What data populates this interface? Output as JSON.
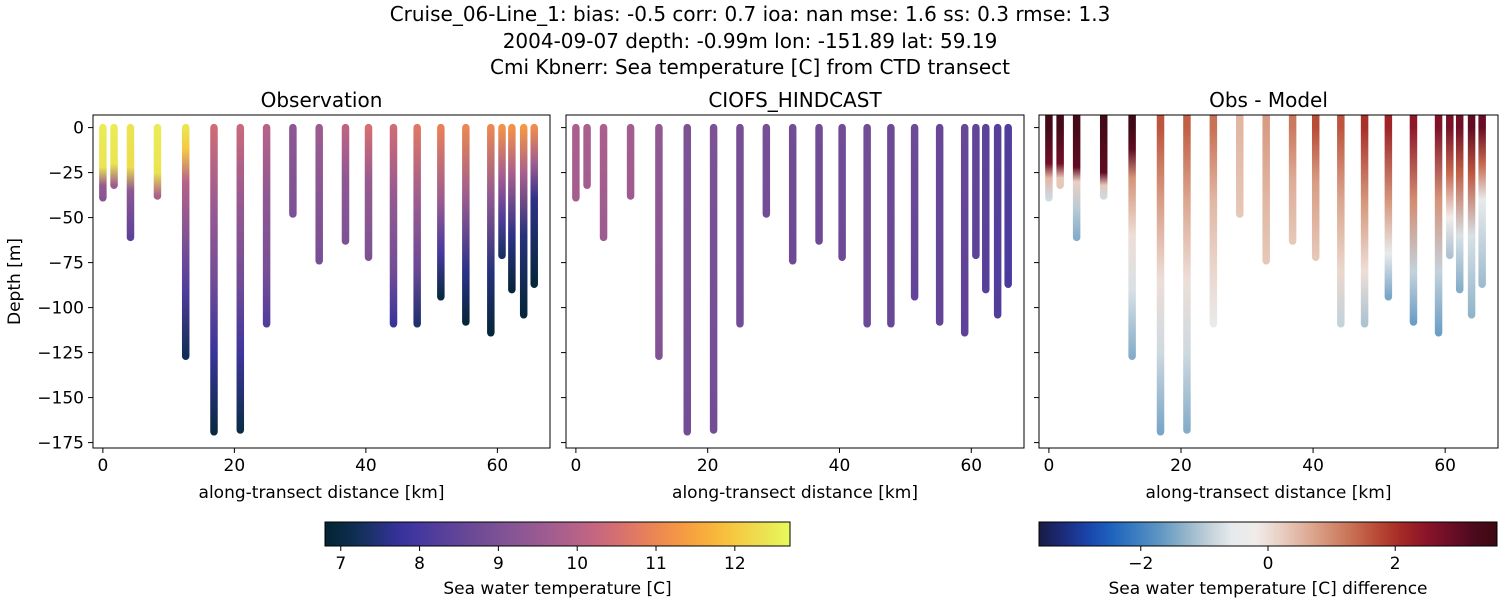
{
  "figure": {
    "title_lines": [
      "Cruise_06-Line_1: bias: -0.5  corr: 0.7  ioa: nan  mse: 1.6  ss: 0.3  rmse: 1.3",
      "2004-09-07 depth: -0.99m lon: -151.89 lat: 59.19",
      "Cmi Kbnerr: Sea temperature [C] from CTD transect"
    ]
  },
  "chart_data": {
    "type": "scatter",
    "shared": {
      "xlabel": "along-transect distance [km]",
      "ylabel": "Depth [m]",
      "xlim": [
        -1.5,
        68
      ],
      "ylim": [
        -178,
        7
      ],
      "xticks": [
        0,
        20,
        40,
        60
      ],
      "yticks": [
        0,
        -25,
        -50,
        -75,
        -100,
        -125,
        -150,
        -175
      ],
      "grid": false
    },
    "stations": [
      {
        "x": 0.0,
        "bottom": -39
      },
      {
        "x": 1.7,
        "bottom": -32
      },
      {
        "x": 4.2,
        "bottom": -61
      },
      {
        "x": 8.3,
        "bottom": -38
      },
      {
        "x": 12.6,
        "bottom": -127
      },
      {
        "x": 16.9,
        "bottom": -169
      },
      {
        "x": 20.9,
        "bottom": -168
      },
      {
        "x": 24.9,
        "bottom": -109
      },
      {
        "x": 28.9,
        "bottom": -48
      },
      {
        "x": 32.9,
        "bottom": -74
      },
      {
        "x": 36.9,
        "bottom": -63
      },
      {
        "x": 40.4,
        "bottom": -72
      },
      {
        "x": 44.2,
        "bottom": -109
      },
      {
        "x": 47.8,
        "bottom": -109
      },
      {
        "x": 51.4,
        "bottom": -94
      },
      {
        "x": 55.2,
        "bottom": -108
      },
      {
        "x": 59.0,
        "bottom": -114
      },
      {
        "x": 60.7,
        "bottom": -71
      },
      {
        "x": 62.2,
        "bottom": -90
      },
      {
        "x": 64.0,
        "bottom": -104
      },
      {
        "x": 65.6,
        "bottom": -87
      }
    ],
    "panels": [
      {
        "id": "obs",
        "title": "Observation",
        "colormap": "thermal",
        "clim": [
          6.8,
          12.7
        ],
        "profiles": [
          [
            [
              0,
              12.5
            ],
            [
              -22,
              12.4
            ],
            [
              -32,
              9.5
            ],
            [
              -39,
              9.2
            ]
          ],
          [
            [
              0,
              12.5
            ],
            [
              -20,
              12.4
            ],
            [
              -32,
              9.6
            ]
          ],
          [
            [
              0,
              12.4
            ],
            [
              -22,
              12.3
            ],
            [
              -35,
              9.3
            ],
            [
              -61,
              8.4
            ]
          ],
          [
            [
              0,
              12.5
            ],
            [
              -25,
              12.4
            ],
            [
              -38,
              9.8
            ]
          ],
          [
            [
              0,
              12.4
            ],
            [
              -12,
              12.0
            ],
            [
              -30,
              10.0
            ],
            [
              -60,
              9.1
            ],
            [
              -90,
              8.2
            ],
            [
              -127,
              7.2
            ]
          ],
          [
            [
              0,
              10.4
            ],
            [
              -40,
              9.6
            ],
            [
              -85,
              8.8
            ],
            [
              -125,
              7.8
            ],
            [
              -169,
              7.0
            ]
          ],
          [
            [
              0,
              10.3
            ],
            [
              -40,
              9.5
            ],
            [
              -85,
              8.8
            ],
            [
              -125,
              7.9
            ],
            [
              -168,
              7.1
            ]
          ],
          [
            [
              0,
              10.0
            ],
            [
              -40,
              9.3
            ],
            [
              -80,
              8.9
            ],
            [
              -109,
              8.2
            ]
          ],
          [
            [
              0,
              9.3
            ],
            [
              -48,
              9.0
            ]
          ],
          [
            [
              0,
              9.6
            ],
            [
              -40,
              9.2
            ],
            [
              -74,
              8.9
            ]
          ],
          [
            [
              0,
              10.1
            ],
            [
              -30,
              9.3
            ],
            [
              -63,
              9.0
            ]
          ],
          [
            [
              0,
              10.5
            ],
            [
              -30,
              9.5
            ],
            [
              -72,
              9.0
            ]
          ],
          [
            [
              0,
              10.4
            ],
            [
              -40,
              9.4
            ],
            [
              -80,
              8.8
            ],
            [
              -109,
              7.8
            ]
          ],
          [
            [
              0,
              10.7
            ],
            [
              -40,
              9.6
            ],
            [
              -80,
              8.6
            ],
            [
              -109,
              7.4
            ]
          ],
          [
            [
              0,
              10.9
            ],
            [
              -40,
              9.6
            ],
            [
              -70,
              8.0
            ],
            [
              -94,
              7.0
            ]
          ],
          [
            [
              0,
              11.0
            ],
            [
              -40,
              9.5
            ],
            [
              -80,
              7.6
            ],
            [
              -108,
              6.9
            ]
          ],
          [
            [
              0,
              11.0
            ],
            [
              -40,
              9.3
            ],
            [
              -80,
              7.5
            ],
            [
              -114,
              6.9
            ]
          ],
          [
            [
              0,
              11.2
            ],
            [
              -25,
              9.8
            ],
            [
              -50,
              8.2
            ],
            [
              -71,
              7.3
            ]
          ],
          [
            [
              0,
              11.2
            ],
            [
              -25,
              9.8
            ],
            [
              -60,
              7.6
            ],
            [
              -90,
              6.9
            ]
          ],
          [
            [
              0,
              11.3
            ],
            [
              -25,
              9.8
            ],
            [
              -60,
              7.5
            ],
            [
              -104,
              6.9
            ]
          ],
          [
            [
              0,
              11.1
            ],
            [
              -20,
              9.6
            ],
            [
              -40,
              7.6
            ],
            [
              -87,
              6.9
            ]
          ]
        ]
      },
      {
        "id": "model",
        "title": "CIOFS_HINDCAST",
        "colormap": "thermal",
        "clim": [
          6.8,
          12.7
        ],
        "profiles": [
          [
            [
              0,
              9.8
            ],
            [
              -39,
              9.7
            ]
          ],
          [
            [
              0,
              9.8
            ],
            [
              -32,
              9.7
            ]
          ],
          [
            [
              0,
              9.8
            ],
            [
              -61,
              9.6
            ]
          ],
          [
            [
              0,
              9.7
            ],
            [
              -38,
              9.6
            ]
          ],
          [
            [
              0,
              9.4
            ],
            [
              -127,
              9.1
            ]
          ],
          [
            [
              0,
              9.0
            ],
            [
              -169,
              8.8
            ]
          ],
          [
            [
              0,
              9.0
            ],
            [
              -168,
              8.8
            ]
          ],
          [
            [
              0,
              8.9
            ],
            [
              -109,
              8.8
            ]
          ],
          [
            [
              0,
              8.9
            ],
            [
              -48,
              8.8
            ]
          ],
          [
            [
              0,
              8.8
            ],
            [
              -74,
              8.7
            ]
          ],
          [
            [
              0,
              8.8
            ],
            [
              -63,
              8.7
            ]
          ],
          [
            [
              0,
              8.8
            ],
            [
              -72,
              8.7
            ]
          ],
          [
            [
              0,
              8.8
            ],
            [
              -109,
              8.7
            ]
          ],
          [
            [
              0,
              8.7
            ],
            [
              -109,
              8.6
            ]
          ],
          [
            [
              0,
              8.7
            ],
            [
              -94,
              8.5
            ]
          ],
          [
            [
              0,
              8.6
            ],
            [
              -108,
              8.5
            ]
          ],
          [
            [
              0,
              8.6
            ],
            [
              -114,
              8.4
            ]
          ],
          [
            [
              0,
              8.5
            ],
            [
              -71,
              8.4
            ]
          ],
          [
            [
              0,
              8.4
            ],
            [
              -90,
              8.3
            ]
          ],
          [
            [
              0,
              8.3
            ],
            [
              -104,
              8.2
            ]
          ],
          [
            [
              0,
              8.2
            ],
            [
              -87,
              8.1
            ]
          ]
        ]
      },
      {
        "id": "diff",
        "title": "Obs - Model",
        "colormap": "balance",
        "clim": [
          -3.6,
          3.6
        ],
        "clip_top": 7,
        "profiles": [
          [
            [
              0,
              3.4
            ],
            [
              -20,
              2.8
            ],
            [
              -28,
              0.5
            ],
            [
              -39,
              -0.8
            ]
          ],
          [
            [
              0,
              3.4
            ],
            [
              -20,
              2.8
            ],
            [
              -28,
              0.3
            ]
          ],
          [
            [
              0,
              3.4
            ],
            [
              -22,
              3.0
            ],
            [
              -30,
              0.2
            ],
            [
              -45,
              -1.0
            ],
            [
              -61,
              -1.4
            ]
          ],
          [
            [
              0,
              3.4
            ],
            [
              -25,
              3.0
            ],
            [
              -32,
              0.3
            ],
            [
              -38,
              -0.8
            ]
          ],
          [
            [
              0,
              3.5
            ],
            [
              -12,
              3.0
            ],
            [
              -28,
              0.9
            ],
            [
              -60,
              0.0
            ],
            [
              -90,
              -0.7
            ],
            [
              -127,
              -1.4
            ]
          ],
          [
            [
              0,
              1.6
            ],
            [
              -40,
              0.8
            ],
            [
              -85,
              0.0
            ],
            [
              -125,
              -0.8
            ],
            [
              -169,
              -1.5
            ]
          ],
          [
            [
              0,
              1.5
            ],
            [
              -40,
              0.7
            ],
            [
              -85,
              0.0
            ],
            [
              -125,
              -0.8
            ],
            [
              -168,
              -1.4
            ]
          ],
          [
            [
              0,
              1.3
            ],
            [
              -40,
              0.5
            ],
            [
              -80,
              0.1
            ],
            [
              -109,
              -0.5
            ]
          ],
          [
            [
              0,
              0.5
            ],
            [
              -48,
              0.3
            ]
          ],
          [
            [
              0,
              0.8
            ],
            [
              -40,
              0.5
            ],
            [
              -74,
              0.3
            ]
          ],
          [
            [
              0,
              1.2
            ],
            [
              -30,
              0.6
            ],
            [
              -63,
              0.3
            ]
          ],
          [
            [
              0,
              1.7
            ],
            [
              -30,
              0.8
            ],
            [
              -72,
              0.3
            ]
          ],
          [
            [
              0,
              1.6
            ],
            [
              -40,
              0.7
            ],
            [
              -80,
              0.1
            ],
            [
              -109,
              -0.9
            ]
          ],
          [
            [
              0,
              2.0
            ],
            [
              -40,
              0.9
            ],
            [
              -80,
              0.0
            ],
            [
              -109,
              -1.1
            ]
          ],
          [
            [
              0,
              2.2
            ],
            [
              -40,
              0.9
            ],
            [
              -70,
              -0.5
            ],
            [
              -94,
              -1.5
            ]
          ],
          [
            [
              0,
              2.4
            ],
            [
              -40,
              1.0
            ],
            [
              -80,
              -0.9
            ],
            [
              -108,
              -1.6
            ]
          ],
          [
            [
              0,
              2.6
            ],
            [
              -40,
              0.9
            ],
            [
              -80,
              -0.9
            ],
            [
              -114,
              -1.6
            ]
          ],
          [
            [
              0,
              2.7
            ],
            [
              -25,
              1.4
            ],
            [
              -50,
              -0.2
            ],
            [
              -71,
              -1.1
            ]
          ],
          [
            [
              0,
              2.8
            ],
            [
              -25,
              1.5
            ],
            [
              -60,
              -0.7
            ],
            [
              -90,
              -1.4
            ]
          ],
          [
            [
              0,
              3.0
            ],
            [
              -25,
              1.6
            ],
            [
              -60,
              -0.7
            ],
            [
              -104,
              -1.3
            ]
          ],
          [
            [
              0,
              2.9
            ],
            [
              -20,
              1.4
            ],
            [
              -40,
              -0.5
            ],
            [
              -87,
              -1.2
            ]
          ]
        ]
      }
    ],
    "colorbars": [
      {
        "id": "cbar-temp",
        "colormap": "thermal",
        "range": [
          6.8,
          12.7
        ],
        "ticks": [
          7,
          8,
          9,
          10,
          11,
          12
        ],
        "label": "Sea water temperature [C]"
      },
      {
        "id": "cbar-diff",
        "colormap": "balance",
        "range": [
          -3.6,
          3.6
        ],
        "ticks": [
          -2,
          0,
          2
        ],
        "label": "Sea water temperature [C] difference"
      }
    ]
  },
  "colormaps": {
    "thermal": [
      "#042333",
      "#0b2d4a",
      "#1f3270",
      "#35329a",
      "#48399f",
      "#5a4199",
      "#6b4996",
      "#7b5195",
      "#8c5793",
      "#9d5c90",
      "#b0618b",
      "#c46681",
      "#d6706f",
      "#e57e5d",
      "#f08f4b",
      "#f7a23f",
      "#f9b83a",
      "#f4cf45",
      "#ebe351",
      "#e8fa5b"
    ],
    "balance": [
      "#181c43",
      "#1c2b7a",
      "#1a44ab",
      "#1f62bd",
      "#3a7dbf",
      "#5e96c3",
      "#8fb2ca",
      "#bfcfd8",
      "#e6eaec",
      "#f1ece9",
      "#e9d0c4",
      "#dfb09c",
      "#d49075",
      "#c86f52",
      "#b94b36",
      "#a52a26",
      "#8c1529",
      "#6e0e27",
      "#4d0a1e",
      "#3c0912"
    ]
  }
}
